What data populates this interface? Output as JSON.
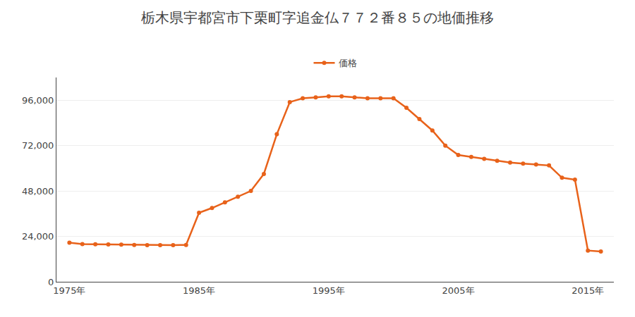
{
  "chart_data": {
    "type": "line",
    "title": "栃木県宇都宮市下栗町字追金仏７７２番８５の地価推移",
    "x": [
      1975,
      1976,
      1977,
      1978,
      1979,
      1980,
      1981,
      1982,
      1983,
      1984,
      1985,
      1986,
      1987,
      1988,
      1989,
      1990,
      1991,
      1992,
      1993,
      1994,
      1995,
      1996,
      1997,
      1998,
      1999,
      2000,
      2001,
      2002,
      2003,
      2004,
      2005,
      2006,
      2007,
      2008,
      2009,
      2010,
      2011,
      2012,
      2013,
      2014,
      2015,
      2016
    ],
    "series": [
      {
        "name": "価格",
        "color": "#e8621a",
        "marker": "circle",
        "values": [
          20700,
          19900,
          19800,
          19700,
          19600,
          19500,
          19400,
          19400,
          19400,
          19500,
          36500,
          39000,
          42000,
          45000,
          48000,
          57000,
          78000,
          95000,
          97000,
          97500,
          98000,
          98000,
          97500,
          97000,
          97000,
          97000,
          92000,
          86000,
          80000,
          72000,
          67000,
          66000,
          65000,
          64000,
          63000,
          62500,
          62000,
          61500,
          55000,
          54000,
          16500,
          16000
        ]
      }
    ],
    "xlim": [
      1974,
      2017
    ],
    "xticks": [
      {
        "value": 1975,
        "label": "1975年"
      },
      {
        "value": 1985,
        "label": "1985年"
      },
      {
        "value": 1995,
        "label": "1995年"
      },
      {
        "value": 2005,
        "label": "2005年"
      },
      {
        "value": 2015,
        "label": "2015年"
      }
    ],
    "ylim": [
      0,
      108000
    ],
    "yticks": [
      0,
      {
        "value": 24000,
        "label": "24,000"
      },
      {
        "value": 48000,
        "label": "48,000"
      },
      {
        "value": 72000,
        "label": "72,000"
      },
      {
        "value": 96000,
        "label": "96,000"
      }
    ],
    "grid": true,
    "legend": "top"
  }
}
